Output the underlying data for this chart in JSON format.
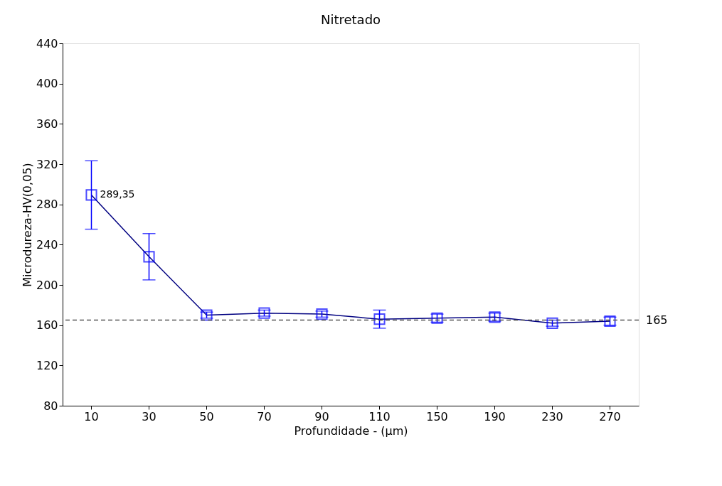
{
  "chart_data": {
    "type": "line",
    "title": "Nitretado",
    "xlabel": "Profundidade - (µm)",
    "ylabel": "Microdureza-HV(0,05)",
    "categories": [
      "10",
      "30",
      "50",
      "70",
      "90",
      "110",
      "150",
      "190",
      "230",
      "270"
    ],
    "series": [
      {
        "color": "#0000ff",
        "values": [
          289.35,
          228,
          170,
          172,
          171,
          166,
          167,
          168,
          162,
          164
        ],
        "errors": [
          34,
          23,
          3,
          3,
          3,
          9,
          4,
          4,
          3,
          4
        ],
        "value_labels": [
          "289,35",
          null,
          null,
          null,
          null,
          null,
          null,
          null,
          null,
          null
        ]
      }
    ],
    "ylim": [
      80,
      440
    ],
    "yticks": [
      80,
      120,
      160,
      200,
      240,
      280,
      320,
      360,
      400,
      440
    ],
    "ref_lines": [
      {
        "axis": "y",
        "value": 165,
        "label": "165",
        "color": "#555555",
        "line_style": "dashed"
      }
    ],
    "marker": "square",
    "line_style": "solid"
  }
}
